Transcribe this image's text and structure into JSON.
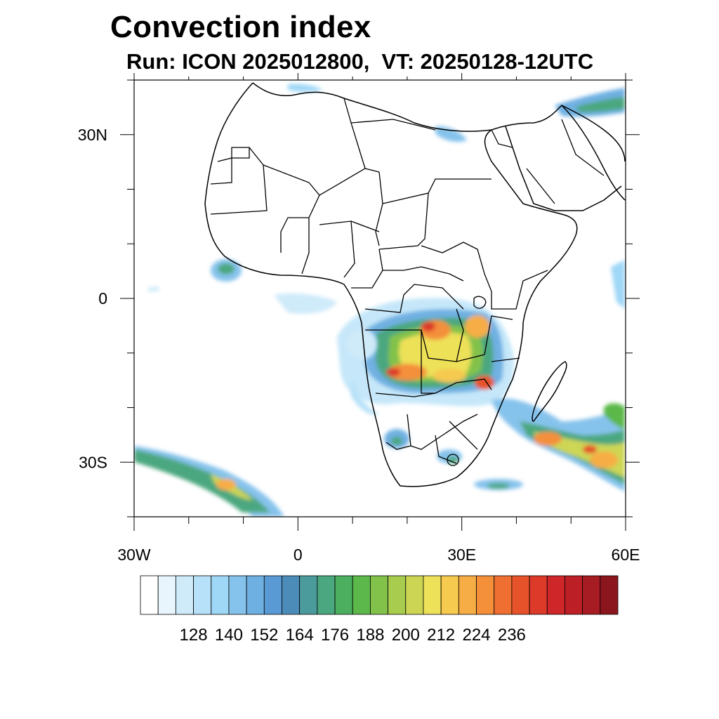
{
  "header": {
    "title": "Convection index",
    "subtitle": "Run: ICON 2025012800,  VT: 20250128-12UTC"
  },
  "map": {
    "lon_range": [
      -30,
      60
    ],
    "lat_range": [
      -40,
      40
    ],
    "lon_ticks": [
      {
        "value": -30,
        "label": "30W"
      },
      {
        "value": 0,
        "label": "0"
      },
      {
        "value": 30,
        "label": "30E"
      },
      {
        "value": 60,
        "label": "60E"
      }
    ],
    "lat_ticks": [
      {
        "value": 30,
        "label": "30N"
      },
      {
        "value": 0,
        "label": "0"
      },
      {
        "value": -30,
        "label": "30S"
      }
    ]
  },
  "colorbar": {
    "colors": [
      "#ffffff",
      "#e8f5fc",
      "#cfeaf9",
      "#b7e1f8",
      "#9fd7f6",
      "#86c3ec",
      "#6fb0e2",
      "#5a9ad4",
      "#4c8cb8",
      "#4c9b9c",
      "#4ba77f",
      "#4caf5f",
      "#5cb84a",
      "#82c24b",
      "#a8cc4e",
      "#cdd654",
      "#ede159",
      "#f6c94f",
      "#f7ad45",
      "#f48f3a",
      "#ee6f31",
      "#e6532b",
      "#dd3a2a",
      "#cf2729",
      "#bd1f27",
      "#a71b22",
      "#8c161d"
    ],
    "labels": [
      "128",
      "140",
      "152",
      "164",
      "176",
      "188",
      "200",
      "212",
      "224",
      "236"
    ]
  }
}
